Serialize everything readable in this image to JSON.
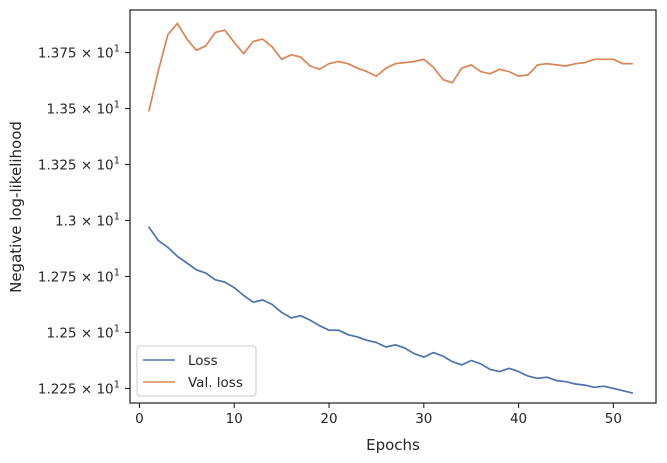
{
  "chart_data": {
    "type": "line",
    "xlabel": "Epochs",
    "ylabel": "Negative log-likelihood",
    "xlim": [
      -1.0,
      54.5
    ],
    "ylim": [
      12.185,
      13.94
    ],
    "x_ticks": [
      {
        "value": 0,
        "label": "0"
      },
      {
        "value": 10,
        "label": "10"
      },
      {
        "value": 20,
        "label": "20"
      },
      {
        "value": 30,
        "label": "30"
      },
      {
        "value": 40,
        "label": "40"
      },
      {
        "value": 50,
        "label": "50"
      }
    ],
    "y_ticks": [
      {
        "value": 12.25,
        "mantissa": "1.225",
        "base": "10",
        "exp": "1"
      },
      {
        "value": 12.5,
        "mantissa": "1.25",
        "base": "10",
        "exp": "1"
      },
      {
        "value": 12.75,
        "mantissa": "1.275",
        "base": "10",
        "exp": "1"
      },
      {
        "value": 13.0,
        "mantissa": "1.3",
        "base": "10",
        "exp": "1"
      },
      {
        "value": 13.25,
        "mantissa": "1.325",
        "base": "10",
        "exp": "1"
      },
      {
        "value": 13.5,
        "mantissa": "1.35",
        "base": "10",
        "exp": "1"
      },
      {
        "value": 13.75,
        "mantissa": "1.375",
        "base": "10",
        "exp": "1"
      }
    ],
    "legend_position": "lower-left",
    "grid": false,
    "series": [
      {
        "name": "Loss",
        "color": "#4c72b0",
        "x": [
          1,
          2,
          3,
          4,
          5,
          6,
          7,
          8,
          9,
          10,
          11,
          12,
          13,
          14,
          15,
          16,
          17,
          18,
          19,
          20,
          21,
          22,
          23,
          24,
          25,
          26,
          27,
          28,
          29,
          30,
          31,
          32,
          33,
          34,
          35,
          36,
          37,
          38,
          39,
          40,
          41,
          42,
          43,
          44,
          45,
          46,
          47,
          48,
          49,
          50,
          51,
          52
        ],
        "values": [
          12.97,
          12.91,
          12.88,
          12.84,
          12.81,
          12.78,
          12.765,
          12.735,
          12.725,
          12.7,
          12.665,
          12.635,
          12.645,
          12.625,
          12.59,
          12.565,
          12.575,
          12.555,
          12.53,
          12.51,
          12.51,
          12.49,
          12.48,
          12.465,
          12.455,
          12.435,
          12.445,
          12.43,
          12.405,
          12.39,
          12.41,
          12.395,
          12.37,
          12.355,
          12.375,
          12.36,
          12.335,
          12.325,
          12.34,
          12.325,
          12.305,
          12.295,
          12.3,
          12.285,
          12.28,
          12.27,
          12.265,
          12.255,
          12.26,
          12.25,
          12.24,
          12.23
        ]
      },
      {
        "name": "Val. loss",
        "color": "#dd8452",
        "x": [
          1,
          2,
          3,
          4,
          5,
          6,
          7,
          8,
          9,
          10,
          11,
          12,
          13,
          14,
          15,
          16,
          17,
          18,
          19,
          20,
          21,
          22,
          23,
          24,
          25,
          26,
          27,
          28,
          29,
          30,
          31,
          32,
          33,
          34,
          35,
          36,
          37,
          38,
          39,
          40,
          41,
          42,
          43,
          44,
          45,
          46,
          47,
          48,
          49,
          50,
          51,
          52
        ],
        "values": [
          13.49,
          13.67,
          13.83,
          13.88,
          13.81,
          13.76,
          13.78,
          13.84,
          13.85,
          13.795,
          13.745,
          13.8,
          13.81,
          13.775,
          13.72,
          13.74,
          13.73,
          13.69,
          13.675,
          13.7,
          13.71,
          13.7,
          13.68,
          13.665,
          13.645,
          13.68,
          13.7,
          13.705,
          13.71,
          13.72,
          13.685,
          13.63,
          13.615,
          13.68,
          13.695,
          13.665,
          13.655,
          13.675,
          13.665,
          13.645,
          13.65,
          13.695,
          13.7,
          13.695,
          13.69,
          13.7,
          13.705,
          13.72,
          13.72,
          13.72,
          13.7,
          13.7
        ]
      }
    ]
  }
}
